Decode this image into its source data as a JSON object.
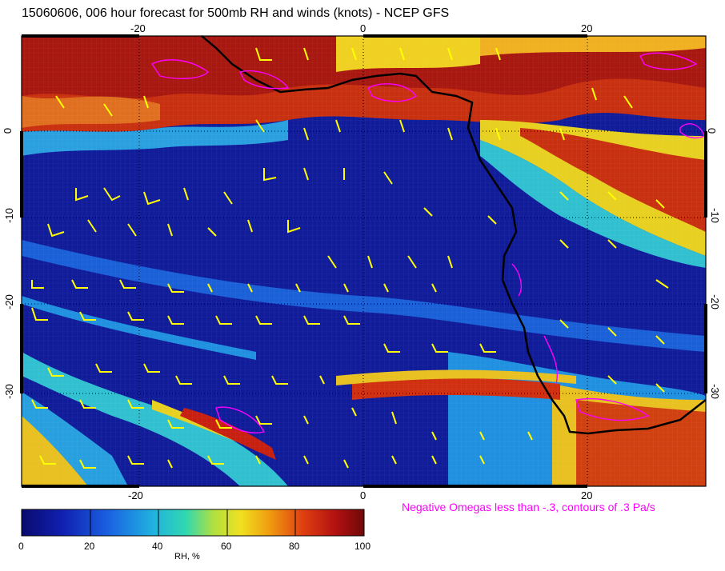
{
  "title": "15060606, 006 hour forecast for 500mb RH and winds (knots) - NCEP GFS",
  "top_ticks": [
    "-20",
    "0",
    "20"
  ],
  "bottom_ticks": [
    "-20",
    "0",
    "20"
  ],
  "left_ticks": [
    "0",
    "-10",
    "-20",
    "-30"
  ],
  "right_ticks": [
    "0",
    "-10",
    "-20",
    "-30"
  ],
  "omega_note": "Negative Omegas less than -.3, contours of .3 Pa/s",
  "colorbar": {
    "title": "RH, %",
    "labels": [
      "0",
      "20",
      "40",
      "60",
      "80",
      "100"
    ],
    "colors": [
      "#0a0a6e",
      "#1a3fcf",
      "#28c8d8",
      "#e8e030",
      "#e85a10",
      "#7a0a0a"
    ]
  },
  "map": {
    "lon_range": [
      -30,
      31
    ],
    "lat_range": [
      -40,
      8
    ],
    "coastline_color": "#000000",
    "wind_barb_color": "#ffff00",
    "omega_contour_color": "#ff00ff"
  }
}
